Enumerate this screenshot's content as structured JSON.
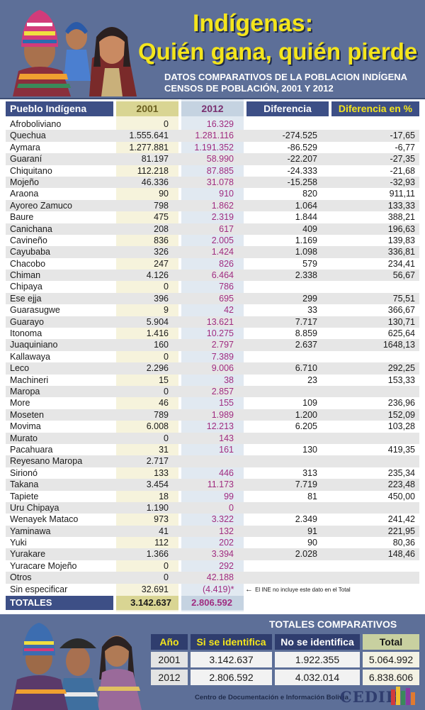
{
  "header": {
    "title_line1": "Indígenas:",
    "title_line2": "Quién gana, quién pierde",
    "subtitle_line1": "DATOS COMPARATIVOS DE LA POBLACION INDÍGENA",
    "subtitle_line2": "CENSOS DE POBLACIÓN, 2001 Y 2012"
  },
  "chart_data": {
    "type": "table",
    "columns": [
      "Pueblo Indígena",
      "2001",
      "2012",
      "Diferencia",
      "Diferencia en %"
    ],
    "rows": [
      [
        "Afroboliviano",
        "0",
        "16.329",
        "",
        ""
      ],
      [
        "Quechua",
        "1.555.641",
        "1.281.116",
        "-274.525",
        "-17,65"
      ],
      [
        "Aymara",
        "1.277.881",
        "1.191.352",
        "-86.529",
        "-6,77"
      ],
      [
        "Guaraní",
        "81.197",
        "58.990",
        "-22.207",
        "-27,35"
      ],
      [
        "Chiquitano",
        "112.218",
        "87.885",
        "-24.333",
        "-21,68"
      ],
      [
        "Mojeño",
        "46.336",
        "31.078",
        "-15.258",
        "-32,93"
      ],
      [
        "Araona",
        "90",
        "910",
        "820",
        "911,11"
      ],
      [
        "Ayoreo Zamuco",
        "798",
        "1.862",
        "1.064",
        "133,33"
      ],
      [
        "Baure",
        "475",
        "2.319",
        "1.844",
        "388,21"
      ],
      [
        "Canichana",
        "208",
        "617",
        "409",
        "196,63"
      ],
      [
        "Cavineño",
        "836",
        "2.005",
        "1.169",
        "139,83"
      ],
      [
        "Cayubaba",
        "326",
        "1.424",
        "1.098",
        "336,81"
      ],
      [
        "Chacobo",
        "247",
        "826",
        "579",
        "234,41"
      ],
      [
        "Chiman",
        "4.126",
        "6.464",
        "2.338",
        "56,67"
      ],
      [
        "Chipaya",
        "0",
        "786",
        "",
        ""
      ],
      [
        "Ese ejja",
        "396",
        "695",
        "299",
        "75,51"
      ],
      [
        "Guarasugwe",
        "9",
        "42",
        "33",
        "366,67"
      ],
      [
        "Guarayo",
        "5.904",
        "13.621",
        "7.717",
        "130,71"
      ],
      [
        "Itonoma",
        "1.416",
        "10.275",
        "8.859",
        "625,64"
      ],
      [
        "Juaquiniano",
        "160",
        "2.797",
        "2.637",
        "1648,13"
      ],
      [
        "Kallawaya",
        "0",
        "7.389",
        "",
        ""
      ],
      [
        "Leco",
        "2.296",
        "9.006",
        "6.710",
        "292,25"
      ],
      [
        "Machineri",
        "15",
        "38",
        "23",
        "153,33"
      ],
      [
        "Maropa",
        "0",
        "2.857",
        "",
        ""
      ],
      [
        "More",
        "46",
        "155",
        "109",
        "236,96"
      ],
      [
        "Moseten",
        "789",
        "1.989",
        "1.200",
        "152,09"
      ],
      [
        "Movima",
        "6.008",
        "12.213",
        "6.205",
        "103,28"
      ],
      [
        "Murato",
        "0",
        "143",
        "",
        ""
      ],
      [
        "Pacahuara",
        "31",
        "161",
        "130",
        "419,35"
      ],
      [
        "Reyesano Maropa",
        "2.717",
        "",
        "",
        ""
      ],
      [
        "Sirionó",
        "133",
        "446",
        "313",
        "235,34"
      ],
      [
        "Takana",
        "3.454",
        "11.173",
        "7.719",
        "223,48"
      ],
      [
        "Tapiete",
        "18",
        "99",
        "81",
        "450,00"
      ],
      [
        "Uru Chipaya",
        "1.190",
        "0",
        "",
        ""
      ],
      [
        "Wenayek Mataco",
        "973",
        "3.322",
        "2.349",
        "241,42"
      ],
      [
        "Yaminawa",
        "41",
        "132",
        "91",
        "221,95"
      ],
      [
        "Yuki",
        "112",
        "202",
        "90",
        "80,36"
      ],
      [
        "Yurakare",
        "1.366",
        "3.394",
        "2.028",
        "148,46"
      ],
      [
        "Yuracare Mojeño",
        "0",
        "292",
        "",
        ""
      ],
      [
        "Otros",
        "0",
        "42.188",
        "",
        ""
      ],
      [
        "Sin especificar",
        "32.691",
        "(4.419)*",
        "",
        ""
      ]
    ],
    "note": "El INE no incluye este dato en el Total",
    "totals": {
      "label": "TOTALES",
      "y2001": "3.142.637",
      "y2012": "2.806.592"
    }
  },
  "footer": {
    "title": "TOTALES COMPARATIVOS",
    "headers": [
      "Año",
      "Si se identifica",
      "No se identifica",
      "Total"
    ],
    "rows": [
      [
        "2001",
        "3.142.637",
        "1.922.355",
        "5.064.992"
      ],
      [
        "2012",
        "2.806.592",
        "4.032.014",
        "6.838.606"
      ]
    ],
    "credit": "Centro de Documentación e Información Bolivia",
    "logo": "CEDIB"
  },
  "colors": {
    "banner": "#5d6f98",
    "header_dark": "#3d4f86",
    "title_yellow": "#f4e51c",
    "col2012_text": "#a02c80"
  }
}
